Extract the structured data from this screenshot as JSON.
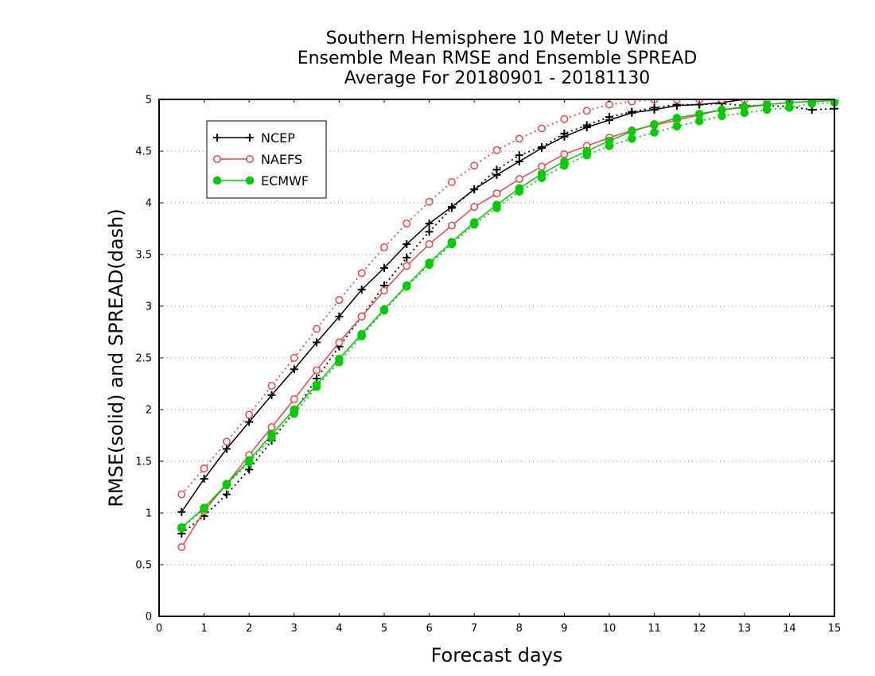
{
  "chart_data": {
    "type": "line",
    "title_lines": [
      "Southern Hemisphere 10 Meter U Wind",
      "Ensemble Mean RMSE and Ensemble SPREAD",
      "Average For 20180901 - 20181130"
    ],
    "xlabel": "Forecast days",
    "ylabel": "RMSE(solid) and SPREAD(dash)",
    "xlim": [
      0,
      15
    ],
    "ylim": [
      0,
      5
    ],
    "xticks": [
      0,
      1,
      2,
      3,
      4,
      5,
      6,
      7,
      8,
      9,
      10,
      11,
      12,
      13,
      14,
      15
    ],
    "xtick_labels": [
      "0",
      "1",
      "2",
      "3",
      "4",
      "5",
      "6",
      "7",
      "8",
      "9",
      "10",
      "11",
      "12",
      "13",
      "14",
      "15"
    ],
    "yticks": [
      0,
      0.5,
      1,
      1.5,
      2,
      2.5,
      3,
      3.5,
      4,
      4.5,
      5
    ],
    "ytick_labels": [
      "0",
      "0.5",
      "1",
      "1.5",
      "2",
      "2.5",
      "3",
      "3.5",
      "4",
      "4.5",
      "5"
    ],
    "grid": "horizontal dotted",
    "legend_position": "top-left",
    "x": [
      0.5,
      1,
      1.5,
      2,
      2.5,
      3,
      3.5,
      4,
      4.5,
      5,
      5.5,
      6,
      6.5,
      7,
      7.5,
      8,
      8.5,
      9,
      9.5,
      10,
      10.5,
      11,
      11.5,
      12,
      12.5,
      13,
      13.5,
      14,
      14.5,
      15
    ],
    "series": [
      {
        "name": "NCEP",
        "metric": "RMSE",
        "line_style": "solid",
        "marker": "plus",
        "color": "#000000",
        "values": [
          1.01,
          1.33,
          1.62,
          1.88,
          2.14,
          2.39,
          2.65,
          2.9,
          3.16,
          3.37,
          3.6,
          3.8,
          3.96,
          4.13,
          4.27,
          4.4,
          4.53,
          4.64,
          4.73,
          4.8,
          4.87,
          4.9,
          4.94,
          4.95,
          4.97,
          5.0,
          5.0,
          5.0,
          5.0,
          5.0
        ]
      },
      {
        "name": "NCEP",
        "metric": "SPREAD",
        "line_style": "dash",
        "marker": "plus",
        "color": "#000000",
        "values": [
          0.8,
          0.97,
          1.18,
          1.42,
          1.7,
          1.98,
          2.3,
          2.61,
          2.9,
          3.2,
          3.47,
          3.72,
          3.95,
          4.13,
          4.32,
          4.46,
          4.54,
          4.67,
          4.75,
          4.83,
          4.88,
          4.92,
          4.95,
          4.95,
          4.96,
          4.94,
          4.94,
          4.93,
          4.9,
          4.91
        ]
      },
      {
        "name": "NAEFS",
        "metric": "RMSE",
        "line_style": "solid",
        "marker": "circle",
        "color": "#ee4444",
        "values": [
          0.67,
          1.02,
          1.28,
          1.56,
          1.83,
          2.1,
          2.38,
          2.65,
          2.9,
          3.15,
          3.39,
          3.6,
          3.78,
          3.96,
          4.09,
          4.23,
          4.35,
          4.47,
          4.55,
          4.63,
          4.7,
          4.75,
          4.8,
          4.85,
          4.9,
          4.92,
          4.95,
          4.97,
          4.98,
          4.99
        ]
      },
      {
        "name": "NAEFS",
        "metric": "SPREAD",
        "line_style": "dash",
        "marker": "circle",
        "color": "#ee4444",
        "values": [
          1.18,
          1.43,
          1.69,
          1.95,
          2.23,
          2.5,
          2.78,
          3.06,
          3.32,
          3.57,
          3.8,
          4.01,
          4.2,
          4.36,
          4.51,
          4.62,
          4.72,
          4.81,
          4.89,
          4.95,
          4.98,
          5.0,
          5.0,
          5.0,
          5.0,
          5.0,
          5.0,
          5.0,
          5.0,
          5.0
        ]
      },
      {
        "name": "ECMWF",
        "metric": "RMSE",
        "line_style": "solid",
        "marker": "dot",
        "color": "#00cc00",
        "values": [
          0.86,
          1.05,
          1.28,
          1.51,
          1.76,
          2.0,
          2.24,
          2.49,
          2.73,
          2.97,
          3.2,
          3.42,
          3.62,
          3.81,
          3.98,
          4.14,
          4.28,
          4.4,
          4.5,
          4.6,
          4.69,
          4.76,
          4.82,
          4.86,
          4.9,
          4.93,
          4.95,
          4.97,
          4.98,
          4.99
        ]
      },
      {
        "name": "ECMWF",
        "metric": "SPREAD",
        "line_style": "dash",
        "marker": "dot",
        "color": "#00cc00",
        "values": [
          0.85,
          1.04,
          1.27,
          1.49,
          1.73,
          1.96,
          2.22,
          2.46,
          2.71,
          2.96,
          3.19,
          3.4,
          3.6,
          3.79,
          3.95,
          4.11,
          4.24,
          4.36,
          4.46,
          4.55,
          4.62,
          4.68,
          4.74,
          4.79,
          4.84,
          4.87,
          4.9,
          4.92,
          4.96,
          4.97
        ]
      }
    ],
    "legend": [
      {
        "label": "NCEP",
        "color": "#000000",
        "marker": "plus"
      },
      {
        "label": "NAEFS",
        "color": "#ee4444",
        "marker": "circle"
      },
      {
        "label": "ECMWF",
        "color": "#00cc00",
        "marker": "dot"
      }
    ]
  }
}
